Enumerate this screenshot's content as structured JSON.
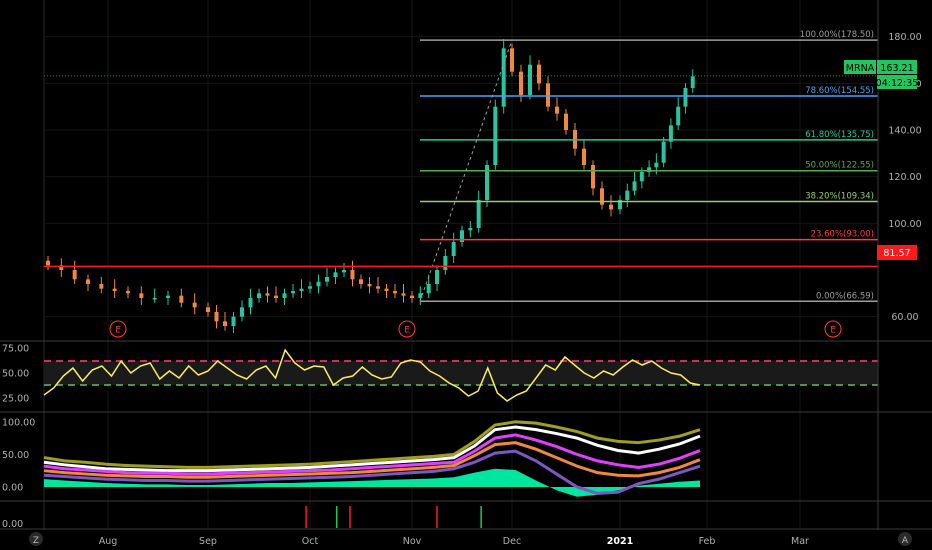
{
  "ticker": "MRNA",
  "last_price_label": "163.21",
  "countdown": "04:12:35",
  "support_label": "81.57",
  "colors": {
    "up": "#26c6a0",
    "down": "#f0883e",
    "price_tag": "#22c55e",
    "support": "#ff1a1a",
    "rsi": "#ffee58",
    "band_dash_top": "#ff4081",
    "band_dash_bottom": "#66bb6a"
  },
  "chart_data": {
    "type": "line",
    "title": "",
    "x_ticks": [
      "Aug",
      "Sep",
      "Oct",
      "Nov",
      "Dec",
      "2021",
      "Feb",
      "Mar"
    ],
    "price_axis": {
      "ticks": [
        "180.00",
        "160.00",
        "140.00",
        "120.00",
        "100.00",
        "60.00"
      ],
      "ylim": [
        50,
        188
      ]
    },
    "fibonacci": [
      {
        "label": "100.00%(178.50)",
        "value": 178.5,
        "color": "#9e9e9e"
      },
      {
        "label": "78.60%(154.55)",
        "value": 154.55,
        "color": "#42a5f5"
      },
      {
        "label": "61.80%(135.75)",
        "value": 135.75,
        "color": "#26c6a0"
      },
      {
        "label": "50.00%(122.55)",
        "value": 122.55,
        "color": "#4caf50"
      },
      {
        "label": "38.20%(109.34)",
        "value": 109.34,
        "color": "#9ccc65"
      },
      {
        "label": "23.60%(93.00)",
        "value": 93.0,
        "color": "#ff3b3b"
      },
      {
        "label": "0.00%(66.59)",
        "value": 66.59,
        "color": "#9e9e9e"
      }
    ],
    "support_level": 81.57,
    "last_price": 163.21,
    "earnings_markers": [
      "E",
      "E",
      "E"
    ],
    "price_series": [
      {
        "month": "Aug",
        "points": [
          82,
          80,
          76,
          74,
          72,
          71,
          70,
          68,
          68,
          69,
          66,
          64
        ]
      },
      {
        "month": "Sep",
        "points": [
          62,
          58,
          56,
          60,
          64,
          68,
          70,
          69,
          68,
          70,
          71,
          72
        ]
      },
      {
        "month": "Oct",
        "points": [
          73,
          75,
          77,
          79,
          80,
          76,
          74,
          73,
          72,
          71,
          70,
          69
        ]
      },
      {
        "month": "Nov",
        "points": [
          68,
          70,
          74,
          80,
          86,
          92,
          97,
          98,
          110,
          125,
          150,
          175
        ]
      },
      {
        "month": "Dec",
        "points": [
          165,
          155,
          168,
          160,
          150,
          147,
          140,
          132,
          125,
          115,
          108,
          106
        ]
      },
      {
        "month": "Jan",
        "points": [
          110,
          114,
          118,
          122,
          124,
          126,
          135,
          142,
          150,
          158,
          163
        ]
      }
    ],
    "rsi": {
      "ticks": [
        "75.00",
        "50.00",
        "25.00"
      ],
      "ylim": [
        12,
        80
      ],
      "upper_band": 62,
      "lower_band": 38,
      "values": [
        28,
        35,
        47,
        55,
        42,
        53,
        57,
        47,
        62,
        50,
        57,
        60,
        44,
        52,
        45,
        57,
        48,
        52,
        62,
        55,
        48,
        44,
        53,
        57,
        45,
        73,
        60,
        53,
        57,
        56,
        38,
        45,
        47,
        56,
        48,
        44,
        46,
        60,
        63,
        61,
        52,
        47,
        40,
        35,
        27,
        32,
        55,
        30,
        22,
        28,
        32,
        45,
        58,
        53,
        66,
        58,
        50,
        45,
        52,
        48,
        56,
        63,
        58,
        62,
        55,
        50,
        48,
        40,
        38
      ]
    },
    "oscillator": {
      "ticks": [
        "100.00",
        "50.00",
        "0.00"
      ],
      "ylim": [
        -20,
        112
      ],
      "series": [
        {
          "color": "#9e9d24",
          "values": [
            45,
            40,
            38,
            35,
            33,
            32,
            31,
            30,
            30,
            31,
            32,
            33,
            34,
            35,
            37,
            39,
            41,
            43,
            45,
            47,
            50,
            70,
            95,
            100,
            98,
            92,
            85,
            75,
            70,
            68,
            72,
            78,
            88
          ]
        },
        {
          "color": "#ffffff",
          "values": [
            38,
            34,
            31,
            28,
            27,
            26,
            25,
            25,
            25,
            26,
            27,
            28,
            29,
            30,
            32,
            34,
            36,
            38,
            40,
            42,
            45,
            63,
            88,
            92,
            88,
            82,
            75,
            64,
            56,
            52,
            58,
            66,
            78
          ]
        },
        {
          "color": "#e040fb",
          "values": [
            32,
            28,
            26,
            24,
            22,
            21,
            21,
            20,
            20,
            21,
            22,
            23,
            24,
            25,
            26,
            28,
            30,
            32,
            34,
            36,
            38,
            55,
            75,
            80,
            72,
            62,
            50,
            40,
            34,
            30,
            35,
            44,
            56
          ]
        },
        {
          "color": "#f0883e",
          "values": [
            25,
            22,
            20,
            18,
            17,
            16,
            16,
            15,
            15,
            16,
            17,
            18,
            19,
            20,
            21,
            22,
            24,
            26,
            28,
            30,
            33,
            48,
            65,
            68,
            58,
            45,
            32,
            22,
            18,
            17,
            22,
            30,
            42
          ]
        },
        {
          "color": "#7e57c2",
          "values": [
            18,
            16,
            14,
            12,
            11,
            10,
            10,
            9,
            9,
            10,
            11,
            12,
            13,
            14,
            15,
            16,
            18,
            20,
            22,
            24,
            28,
            38,
            52,
            55,
            40,
            20,
            0,
            -10,
            -8,
            5,
            12,
            22,
            32
          ]
        }
      ],
      "histogram": [
        12,
        10,
        8,
        6,
        5,
        4,
        4,
        3,
        3,
        4,
        5,
        6,
        6,
        7,
        8,
        9,
        10,
        11,
        12,
        13,
        15,
        22,
        28,
        26,
        10,
        -5,
        -15,
        -12,
        -5,
        2,
        5,
        8,
        10
      ]
    },
    "signal_pane": {
      "ticks": [
        "0.00"
      ],
      "signals": [
        {
          "month_index": 2,
          "fraction": 0.55,
          "color": "#ff1a1a"
        },
        {
          "month_index": 2,
          "fraction": 0.85,
          "color": "#22c55e"
        },
        {
          "month_index": 2,
          "fraction": 0.98,
          "color": "#ff1a1a"
        },
        {
          "month_index": 3,
          "fraction": 0.85,
          "color": "#ff1a1a"
        },
        {
          "month_index": 4,
          "fraction": 0.27,
          "color": "#22c55e"
        }
      ]
    },
    "grid": true
  },
  "toolbar": {
    "left_icon_label": "Z",
    "right_icon_label": "A"
  }
}
